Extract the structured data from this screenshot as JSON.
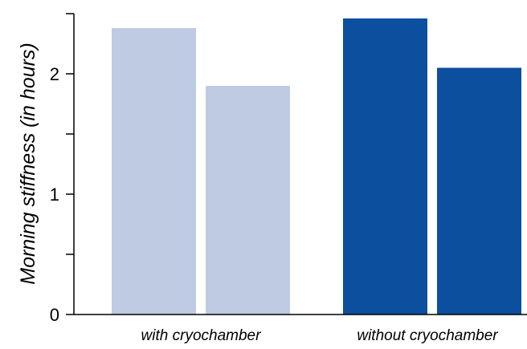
{
  "chart_data": {
    "type": "bar",
    "title": "",
    "xlabel": "",
    "ylabel": "Morning stiffness (in hours)",
    "ylim": [
      0,
      2.5
    ],
    "yticks": [
      0,
      0.5,
      1,
      1.5,
      2,
      2.5
    ],
    "ytick_labels": [
      "0",
      "1",
      "2"
    ],
    "ytick_label_values": [
      0,
      1,
      2
    ],
    "grid": false,
    "legend": "none",
    "categories": [
      "with cryochamber",
      "without cryochamber"
    ],
    "groups": [
      {
        "category": "with cryochamber",
        "values": [
          2.38,
          1.9
        ],
        "color": "#bfcbe3"
      },
      {
        "category": "without cryochamber",
        "values": [
          2.46,
          2.05
        ],
        "color": "#0b4f9e"
      }
    ]
  }
}
